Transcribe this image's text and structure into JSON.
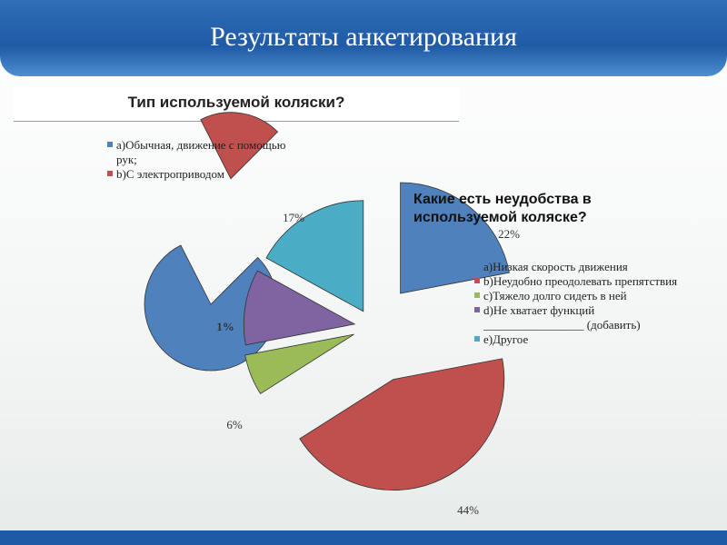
{
  "page_title": "Результаты анкетирования",
  "chart_data": [
    {
      "type": "pie",
      "title": "Тип используемой коляски?",
      "categories": [
        "a)Обычная, движение с помощью рук;",
        "b)С электроприводом"
      ],
      "values": [
        80,
        20
      ],
      "colors": [
        "#4f81bd",
        "#c0504d"
      ]
    },
    {
      "type": "pie",
      "title": "Какие есть неудобства в используемой коляске?",
      "categories": [
        "a)Низкая скорость движения",
        "b)Неудобно преодолевать препятствия",
        "c)Тяжело долго сидеть в ней",
        "d)Не хватает функций _________________ (добавить)",
        "e)Другое"
      ],
      "values": [
        22,
        44,
        6,
        11,
        17
      ],
      "value_labels": [
        "22%",
        "44%",
        "6%",
        null,
        "17%"
      ],
      "annotations": [
        "1%"
      ],
      "colors": [
        "#4f81bd",
        "#c0504d",
        "#9bbb59",
        "#8064a2",
        "#4bacc6"
      ]
    }
  ]
}
